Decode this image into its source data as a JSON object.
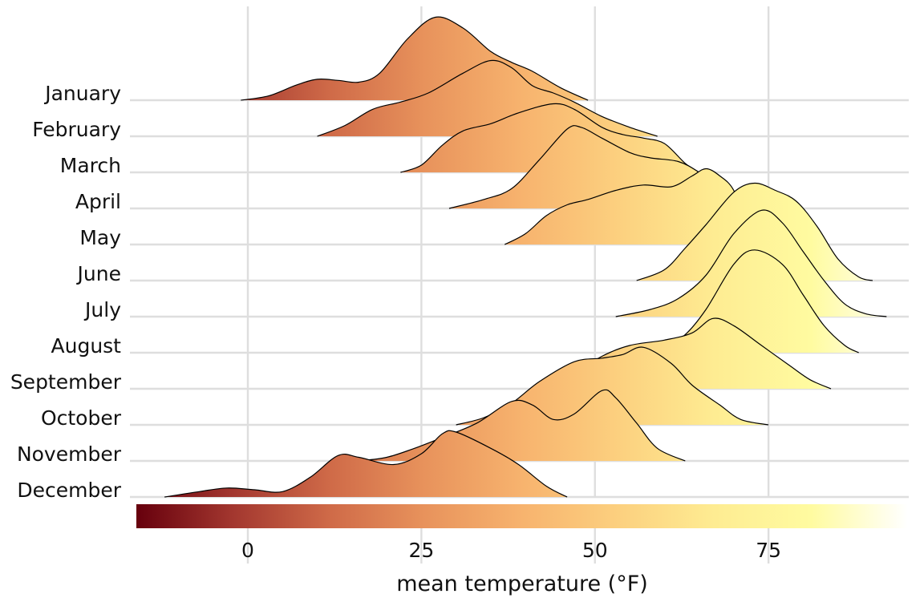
{
  "chart_data": {
    "type": "ridgeline",
    "title": "",
    "xlabel": "mean temperature (°F)",
    "ylabel": "",
    "xlim": [
      -16,
      95
    ],
    "x_ticks": [
      0,
      25,
      50,
      75
    ],
    "x_tick_labels": [
      "0",
      "25",
      "50",
      "75"
    ],
    "grid": true,
    "legend": {
      "type": "colorbar",
      "placement": "bottom",
      "range": [
        -16,
        95
      ]
    },
    "colormap": [
      "#67000d",
      "#a3372f",
      "#cf6a48",
      "#e8935c",
      "#f7b36e",
      "#fcd07f",
      "#feec92",
      "#fffba0",
      "#ffffff"
    ],
    "categories": [
      "January",
      "February",
      "March",
      "April",
      "May",
      "June",
      "July",
      "August",
      "September",
      "October",
      "November",
      "December"
    ],
    "series": [
      {
        "name": "January",
        "density": [
          [
            -1,
            0
          ],
          [
            3,
            0.12
          ],
          [
            7,
            0.42
          ],
          [
            10,
            0.58
          ],
          [
            13,
            0.55
          ],
          [
            16,
            0.5
          ],
          [
            19,
            0.75
          ],
          [
            23,
            1.7
          ],
          [
            27,
            2.3
          ],
          [
            31,
            2.0
          ],
          [
            35,
            1.35
          ],
          [
            38,
            1.05
          ],
          [
            41,
            0.8
          ],
          [
            45,
            0.35
          ],
          [
            49,
            0
          ]
        ]
      },
      {
        "name": "February",
        "density": [
          [
            10,
            0
          ],
          [
            14,
            0.3
          ],
          [
            18,
            0.75
          ],
          [
            22,
            0.95
          ],
          [
            26,
            1.2
          ],
          [
            31,
            1.75
          ],
          [
            35,
            2.1
          ],
          [
            38,
            1.9
          ],
          [
            41,
            1.4
          ],
          [
            44,
            1.2
          ],
          [
            47,
            0.95
          ],
          [
            51,
            0.55
          ],
          [
            55,
            0.25
          ],
          [
            59,
            0
          ]
        ]
      },
      {
        "name": "March",
        "density": [
          [
            22,
            0
          ],
          [
            25,
            0.2
          ],
          [
            28,
            0.75
          ],
          [
            31,
            1.15
          ],
          [
            35,
            1.35
          ],
          [
            39,
            1.65
          ],
          [
            44,
            1.9
          ],
          [
            47,
            1.75
          ],
          [
            51,
            1.25
          ],
          [
            54,
            1.05
          ],
          [
            57,
            0.95
          ],
          [
            60,
            0.8
          ],
          [
            63,
            0.25
          ],
          [
            65,
            0
          ]
        ]
      },
      {
        "name": "April",
        "density": [
          [
            29,
            0
          ],
          [
            34,
            0.25
          ],
          [
            38,
            0.55
          ],
          [
            42,
            1.35
          ],
          [
            46,
            2.2
          ],
          [
            48,
            2.25
          ],
          [
            51,
            1.95
          ],
          [
            55,
            1.55
          ],
          [
            58,
            1.4
          ],
          [
            62,
            1.3
          ],
          [
            65,
            1.0
          ],
          [
            68,
            0.55
          ],
          [
            71,
            0
          ]
        ]
      },
      {
        "name": "May",
        "density": [
          [
            37,
            0
          ],
          [
            40,
            0.3
          ],
          [
            43,
            0.8
          ],
          [
            46,
            1.1
          ],
          [
            49,
            1.25
          ],
          [
            53,
            1.5
          ],
          [
            57,
            1.65
          ],
          [
            61,
            1.6
          ],
          [
            64,
            1.9
          ],
          [
            66,
            2.1
          ],
          [
            68,
            1.9
          ],
          [
            70,
            1.5
          ],
          [
            72,
            0.5
          ],
          [
            74,
            0
          ]
        ]
      },
      {
        "name": "June",
        "density": [
          [
            56,
            0
          ],
          [
            60,
            0.3
          ],
          [
            63,
            0.9
          ],
          [
            66,
            1.55
          ],
          [
            70,
            2.45
          ],
          [
            73,
            2.7
          ],
          [
            76,
            2.5
          ],
          [
            79,
            2.2
          ],
          [
            82,
            1.5
          ],
          [
            85,
            0.6
          ],
          [
            88,
            0.1
          ],
          [
            90,
            0
          ]
        ]
      },
      {
        "name": "July",
        "density": [
          [
            53,
            0
          ],
          [
            58,
            0.2
          ],
          [
            62,
            0.5
          ],
          [
            66,
            1.15
          ],
          [
            70,
            2.3
          ],
          [
            74,
            2.95
          ],
          [
            77,
            2.6
          ],
          [
            80,
            1.8
          ],
          [
            83,
            1.0
          ],
          [
            86,
            0.35
          ],
          [
            89,
            0.08
          ],
          [
            92,
            0
          ]
        ]
      },
      {
        "name": "August",
        "density": [
          [
            56,
            0
          ],
          [
            60,
            0.15
          ],
          [
            63,
            0.5
          ],
          [
            66,
            1.2
          ],
          [
            70,
            2.45
          ],
          [
            73,
            2.85
          ],
          [
            77,
            2.45
          ],
          [
            80,
            1.6
          ],
          [
            83,
            0.75
          ],
          [
            86,
            0.2
          ],
          [
            88,
            0
          ]
        ]
      },
      {
        "name": "September",
        "density": [
          [
            44,
            0
          ],
          [
            47,
            0.4
          ],
          [
            51,
            0.9
          ],
          [
            55,
            1.2
          ],
          [
            60,
            1.35
          ],
          [
            64,
            1.55
          ],
          [
            67,
            1.95
          ],
          [
            70,
            1.75
          ],
          [
            74,
            1.2
          ],
          [
            78,
            0.65
          ],
          [
            81,
            0.25
          ],
          [
            84,
            0
          ]
        ]
      },
      {
        "name": "October",
        "density": [
          [
            30,
            0
          ],
          [
            34,
            0.2
          ],
          [
            38,
            0.6
          ],
          [
            42,
            1.2
          ],
          [
            47,
            1.75
          ],
          [
            51,
            1.85
          ],
          [
            54,
            1.95
          ],
          [
            57,
            2.15
          ],
          [
            61,
            1.7
          ],
          [
            64,
            1.1
          ],
          [
            68,
            0.55
          ],
          [
            71,
            0.15
          ],
          [
            75,
            0
          ]
        ]
      },
      {
        "name": "November",
        "density": [
          [
            16,
            0
          ],
          [
            20,
            0.1
          ],
          [
            24,
            0.35
          ],
          [
            28,
            0.65
          ],
          [
            33,
            1.05
          ],
          [
            38,
            1.65
          ],
          [
            41,
            1.55
          ],
          [
            44,
            1.15
          ],
          [
            47,
            1.3
          ],
          [
            51,
            1.95
          ],
          [
            53,
            1.75
          ],
          [
            56,
            1.05
          ],
          [
            59,
            0.35
          ],
          [
            63,
            0
          ]
        ]
      },
      {
        "name": "December",
        "density": [
          [
            -12,
            0
          ],
          [
            -7,
            0.15
          ],
          [
            -3,
            0.25
          ],
          [
            1,
            0.2
          ],
          [
            5,
            0.15
          ],
          [
            9,
            0.55
          ],
          [
            13,
            1.15
          ],
          [
            16,
            1.1
          ],
          [
            21,
            0.9
          ],
          [
            25,
            1.2
          ],
          [
            28,
            1.75
          ],
          [
            30,
            1.8
          ],
          [
            35,
            1.35
          ],
          [
            39,
            0.9
          ],
          [
            43,
            0.3
          ],
          [
            46,
            0
          ]
        ]
      }
    ]
  }
}
